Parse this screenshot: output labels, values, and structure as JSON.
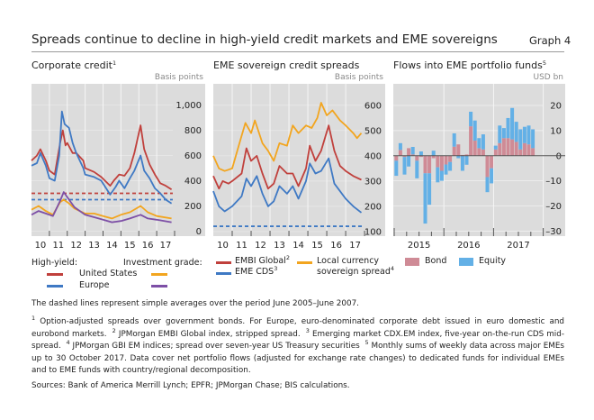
{
  "header": {
    "title": "Spreads continue to decline in high-yield credit markets and EME sovereigns",
    "graph_label": "Graph 4"
  },
  "colors": {
    "us_hy": "#c0403c",
    "eu_hy": "#3f79c4",
    "us_ig": "#f2a51f",
    "eu_ig": "#7d4fa6",
    "embi": "#c0403c",
    "cds": "#3f79c4",
    "local": "#f2a51f",
    "bond": "#cf8b96",
    "equity": "#63b0e6",
    "background": "#dcdcdc"
  },
  "chart_data": [
    {
      "type": "line",
      "title": "Corporate credit",
      "title_note": "1",
      "ylabel": "Basis points",
      "ylim": [
        -40,
        1170
      ],
      "xlim": [
        2010,
        2017.9
      ],
      "yticks": [
        0,
        200,
        400,
        600,
        800,
        1000
      ],
      "ytick_labels": [
        "0",
        "200",
        "400",
        "600",
        "800",
        "1,000"
      ],
      "xtick_labels": [
        "10",
        "11",
        "12",
        "13",
        "14",
        "15",
        "16",
        "17"
      ],
      "grid": true,
      "legend_groups": [
        "High-yield:",
        "Investment grade:"
      ],
      "legend_rows": [
        "United States",
        "Europe"
      ],
      "series": [
        {
          "name": "High-yield United States",
          "color_key": "us_hy",
          "x": [
            2010.0,
            2010.3,
            2010.5,
            2010.8,
            2011.0,
            2011.3,
            2011.6,
            2011.75,
            2011.9,
            2012.0,
            2012.3,
            2012.5,
            2012.9,
            2013.0,
            2013.5,
            2013.9,
            2014.4,
            2014.6,
            2014.9,
            2015.2,
            2015.5,
            2015.75,
            2016.1,
            2016.3,
            2016.6,
            2016.9,
            2017.2,
            2017.5,
            2017.83
          ],
          "y": [
            560,
            600,
            650,
            560,
            480,
            450,
            700,
            800,
            680,
            700,
            620,
            620,
            560,
            500,
            470,
            430,
            360,
            400,
            450,
            440,
            500,
            620,
            840,
            650,
            530,
            450,
            380,
            360,
            330
          ],
          "average": 300
        },
        {
          "name": "High-yield Europe",
          "color_key": "eu_hy",
          "x": [
            2010.0,
            2010.3,
            2010.5,
            2010.8,
            2011.0,
            2011.3,
            2011.55,
            2011.7,
            2011.85,
            2012.1,
            2012.3,
            2012.5,
            2012.9,
            2013.0,
            2013.5,
            2013.9,
            2014.4,
            2014.7,
            2014.9,
            2015.2,
            2015.5,
            2015.75,
            2016.1,
            2016.3,
            2016.6,
            2016.9,
            2017.2,
            2017.5,
            2017.83
          ],
          "y": [
            520,
            540,
            620,
            520,
            420,
            400,
            600,
            950,
            850,
            820,
            700,
            620,
            500,
            450,
            430,
            400,
            290,
            350,
            400,
            340,
            420,
            480,
            600,
            480,
            420,
            340,
            300,
            250,
            220
          ],
          "average": 250
        },
        {
          "name": "Investment grade United States",
          "color_key": "us_ig",
          "x": [
            2010.0,
            2010.4,
            2010.8,
            2011.2,
            2011.6,
            2011.8,
            2012.1,
            2012.4,
            2013.0,
            2013.5,
            2014.0,
            2014.5,
            2015.0,
            2015.5,
            2016.1,
            2016.5,
            2017.0,
            2017.83
          ],
          "y": [
            170,
            200,
            160,
            130,
            230,
            250,
            220,
            180,
            140,
            140,
            120,
            100,
            130,
            150,
            200,
            150,
            120,
            100
          ]
        },
        {
          "name": "Investment grade Europe",
          "color_key": "eu_ig",
          "x": [
            2010.0,
            2010.4,
            2010.8,
            2011.2,
            2011.6,
            2011.8,
            2012.1,
            2012.4,
            2013.0,
            2013.5,
            2014.0,
            2014.5,
            2015.0,
            2015.5,
            2016.1,
            2016.5,
            2017.0,
            2017.83
          ],
          "y": [
            130,
            160,
            140,
            120,
            240,
            310,
            250,
            190,
            130,
            110,
            90,
            70,
            80,
            100,
            130,
            100,
            90,
            70
          ]
        }
      ]
    },
    {
      "type": "line",
      "title": "EME sovereign credit spreads",
      "ylabel": "Basis points",
      "ylim": [
        82,
        685
      ],
      "xlim": [
        2010,
        2017.9
      ],
      "yticks": [
        100,
        200,
        300,
        400,
        500,
        600
      ],
      "ytick_labels": [
        "100",
        "200",
        "300",
        "400",
        "500",
        "600"
      ],
      "xtick_labels": [
        "10",
        "11",
        "12",
        "13",
        "14",
        "15",
        "16",
        "17"
      ],
      "grid": true,
      "series": [
        {
          "name": "EMBI Global",
          "note": "2",
          "color_key": "embi",
          "x": [
            2010.0,
            2010.3,
            2010.5,
            2010.8,
            2011.0,
            2011.5,
            2011.75,
            2012.0,
            2012.3,
            2012.6,
            2012.9,
            2013.2,
            2013.5,
            2013.9,
            2014.2,
            2014.5,
            2014.9,
            2015.1,
            2015.4,
            2015.7,
            2016.1,
            2016.4,
            2016.7,
            2017.0,
            2017.4,
            2017.83
          ],
          "y": [
            320,
            270,
            300,
            290,
            300,
            330,
            430,
            380,
            400,
            330,
            270,
            290,
            360,
            330,
            330,
            280,
            350,
            440,
            380,
            420,
            520,
            420,
            360,
            340,
            320,
            305
          ]
        },
        {
          "name": "EME CDS",
          "note": "3",
          "color_key": "cds",
          "x": [
            2010.0,
            2010.3,
            2010.6,
            2011.0,
            2011.5,
            2011.75,
            2012.0,
            2012.3,
            2012.6,
            2012.9,
            2013.2,
            2013.5,
            2013.9,
            2014.2,
            2014.5,
            2014.9,
            2015.1,
            2015.4,
            2015.7,
            2016.1,
            2016.4,
            2016.7,
            2017.0,
            2017.4,
            2017.83
          ],
          "y": [
            260,
            200,
            180,
            200,
            240,
            310,
            280,
            320,
            250,
            200,
            220,
            280,
            250,
            280,
            230,
            300,
            370,
            330,
            340,
            390,
            290,
            260,
            230,
            200,
            175
          ],
          "average": 121
        },
        {
          "name": "Local currency sovereign spread",
          "name_lines": [
            "Local currency",
            "sovereign spread"
          ],
          "note": "4",
          "color_key": "local",
          "x": [
            2010.0,
            2010.3,
            2010.6,
            2011.0,
            2011.5,
            2011.7,
            2012.0,
            2012.2,
            2012.6,
            2012.9,
            2013.2,
            2013.5,
            2013.9,
            2014.2,
            2014.5,
            2014.9,
            2015.2,
            2015.5,
            2015.7,
            2016.0,
            2016.3,
            2016.7,
            2017.0,
            2017.4,
            2017.6,
            2017.83
          ],
          "y": [
            400,
            350,
            340,
            350,
            480,
            530,
            490,
            540,
            450,
            420,
            380,
            450,
            440,
            520,
            490,
            520,
            510,
            550,
            610,
            560,
            580,
            540,
            520,
            490,
            470,
            490
          ]
        }
      ]
    },
    {
      "type": "bar",
      "stacked": true,
      "title": "Flows into EME portfolio funds",
      "title_note": "5",
      "ylabel": "USD bn",
      "ylim": [
        -32,
        28.6
      ],
      "yticks": [
        -30,
        -20,
        -10,
        0,
        10,
        20
      ],
      "ytick_labels": [
        "–30",
        "–20",
        "–10",
        "0",
        "10",
        "20"
      ],
      "xtick_labels": [
        "2015",
        "2016",
        "2017"
      ],
      "start": "2015-01",
      "frequency": "monthly",
      "grid": true,
      "series": [
        {
          "name": "Bond",
          "color_key": "bond",
          "values": [
            -2,
            2.3,
            -0.5,
            3,
            0.5,
            -2,
            -0.5,
            -7,
            -7,
            -1,
            -4.6,
            -6,
            -3.5,
            -2.5,
            3.6,
            4.5,
            0.3,
            0.5,
            11.7,
            6,
            3,
            2.5,
            -8.5,
            -5,
            2.5,
            5,
            7,
            7,
            6.5,
            5.5,
            2.5,
            5,
            4.5,
            3
          ]
        },
        {
          "name": "Equity",
          "color_key": "equity",
          "values": [
            -6,
            2.7,
            -7,
            -4.3,
            3,
            -7,
            1.7,
            -20,
            -12.5,
            2,
            -6,
            -4,
            -4,
            -3.5,
            5.3,
            -1,
            -6,
            -3.6,
            5.8,
            8,
            4,
            6,
            -6,
            -6,
            1.5,
            7,
            4,
            8,
            12.5,
            8,
            8,
            6.5,
            7.5,
            7.5
          ]
        }
      ]
    }
  ],
  "notes": {
    "dashed": "The dashed lines represent simple averages over the period June 2005–June 2007.",
    "fn": [
      {
        "mark": "1",
        "text": "Option-adjusted spreads over government bonds. For Europe, euro-denominated corporate debt issued in euro domestic and eurobond markets."
      },
      {
        "mark": "2",
        "text": "JPMorgan EMBI Global index, stripped spread."
      },
      {
        "mark": "3",
        "text": "Emerging market CDX.EM index, five-year on-the-run CDS mid-spread."
      },
      {
        "mark": "4",
        "text": "JPMorgan GBI EM indices; spread over seven-year US Treasury securities"
      },
      {
        "mark": "5",
        "text": "Monthly sums of weekly data across major EMEs up to 30 October 2017. Data cover net portfolio flows (adjusted for exchange rate changes) to dedicated funds for individual EMEs and to EME funds with country/regional decomposition."
      }
    ],
    "sources": "Sources: Bank of America Merrill Lynch; EPFR; JPMorgan Chase; BIS calculations."
  }
}
